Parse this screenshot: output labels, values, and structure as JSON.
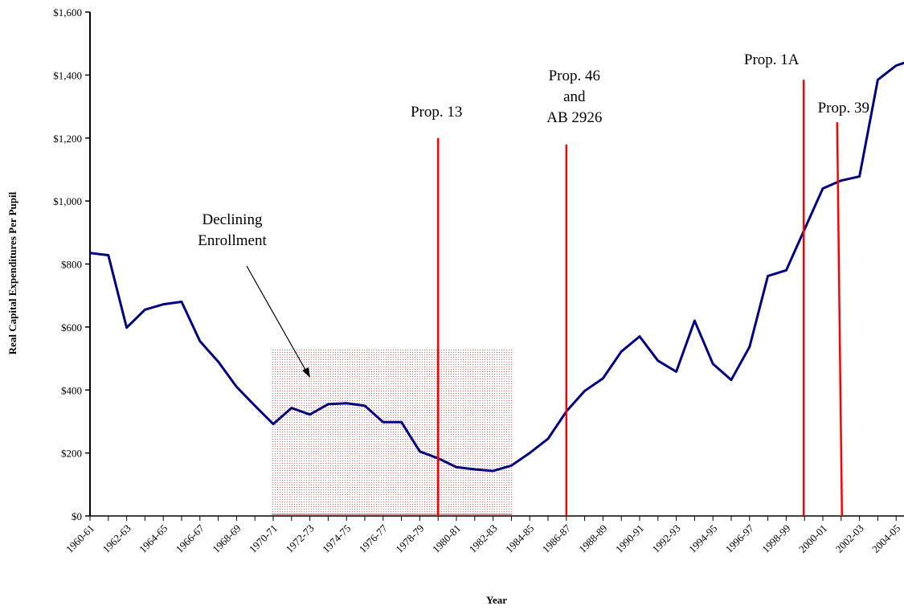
{
  "chart_data": {
    "type": "line",
    "xlabel": "Year",
    "ylabel": "Real Capital Expenditures Per Pupil",
    "ylim": [
      0,
      1600
    ],
    "yticks": [
      "$0",
      "$200",
      "$400",
      "$600",
      "$800",
      "$1,000",
      "$1,200",
      "$1,400",
      "$1,600"
    ],
    "ytick_values": [
      0,
      200,
      400,
      600,
      800,
      1000,
      1200,
      1400,
      1600
    ],
    "x": [
      "1960-61",
      "1961-62",
      "1962-63",
      "1963-64",
      "1964-65",
      "1965-66",
      "1966-67",
      "1967-68",
      "1968-69",
      "1969-70",
      "1970-71",
      "1971-72",
      "1972-73",
      "1973-74",
      "1974-75",
      "1975-76",
      "1976-77",
      "1977-78",
      "1978-79",
      "1979-80",
      "1980-81",
      "1981-82",
      "1982-83",
      "1983-84",
      "1984-85",
      "1985-86",
      "1986-87",
      "1987-88",
      "1988-89",
      "1989-90",
      "1990-91",
      "1991-92",
      "1992-93",
      "1993-94",
      "1994-95",
      "1995-96",
      "1996-97",
      "1997-98",
      "1998-99",
      "1999-00",
      "2000-01",
      "2001-02",
      "2002-03",
      "2003-04",
      "2004-05",
      "2005-06"
    ],
    "xtick_labels": [
      "1960-61",
      "1962-63",
      "1964-65",
      "1966-67",
      "1968-69",
      "1970-71",
      "1972-73",
      "1974-75",
      "1976-77",
      "1978-79",
      "1980-81",
      "1982-83",
      "1984-85",
      "1986-87",
      "1988-89",
      "1990-91",
      "1992-93",
      "1994-95",
      "1996-97",
      "1998-99",
      "2000-01",
      "2002-03",
      "2004-05"
    ],
    "series": [
      {
        "values": [
          835,
          828,
          598,
          655,
          672,
          680,
          555,
          490,
          410,
          350,
          292,
          343,
          322,
          355,
          358,
          350,
          298,
          298,
          205,
          183,
          155,
          148,
          143,
          160,
          200,
          245,
          332,
          397,
          437,
          522,
          570,
          493,
          458,
          620,
          483,
          432,
          537,
          762,
          780,
          910,
          1040,
          1065,
          1078,
          1385,
          1430,
          1450
        ],
        "color": "#000080"
      }
    ],
    "shaded_region": {
      "label": "Declining Enrollment",
      "x_start": "1970-71",
      "x_end": "1983-84",
      "y_top": 530,
      "color": "#e06060"
    },
    "vertical_lines": [
      {
        "label": "Prop. 13",
        "x": "1979-80",
        "y_top": 1200,
        "color": "#ff0000"
      },
      {
        "label_lines": [
          "Prop. 46",
          "and",
          "AB 2926"
        ],
        "x": "1986-87",
        "y_top": 1180,
        "color": "#ff0000"
      },
      {
        "label": "Prop. 1A",
        "x": "1999-00",
        "y_top": 1385,
        "color": "#ff0000"
      },
      {
        "label": "Prop. 39",
        "x": "2001-02",
        "y_top": 1250,
        "y_bottom": 1045,
        "color": "#ff0000"
      }
    ],
    "grid": false,
    "legend": "none"
  }
}
